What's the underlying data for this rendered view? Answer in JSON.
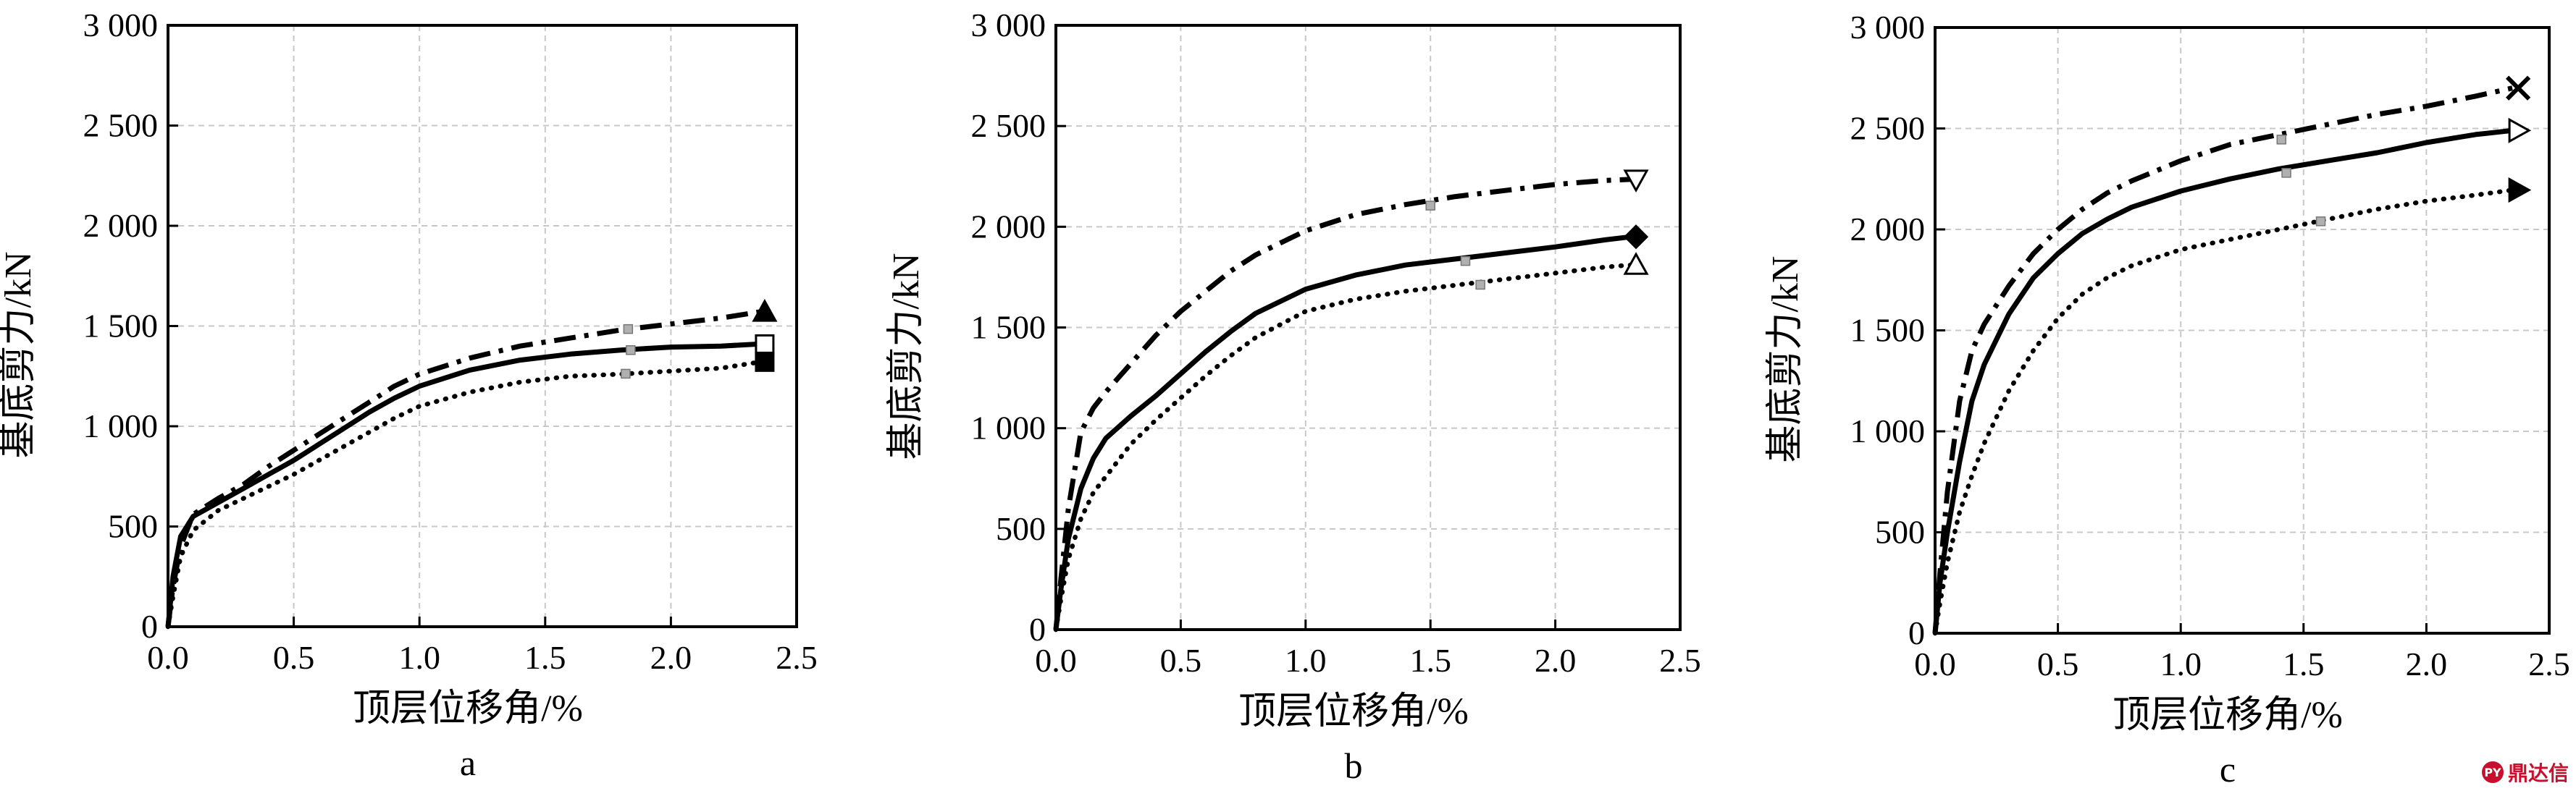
{
  "chart_data": [
    {
      "type": "line",
      "panel_label": "a",
      "xlabel": "顶层位移角/%",
      "ylabel": "基底剪力/kN",
      "xlim": [
        0,
        2.5
      ],
      "ylim": [
        0,
        3000
      ],
      "xticks": [
        0,
        0.5,
        1,
        1.5,
        2,
        2.5
      ],
      "xtick_labels": [
        "0.0",
        "0.5",
        "1.0",
        "1.5",
        "2.0",
        "2.5"
      ],
      "yticks": [
        0,
        500,
        1000,
        1500,
        2000,
        2500,
        3000
      ],
      "ytick_labels": [
        "0",
        "500",
        "1 000",
        "1 500",
        "2 000",
        "2 500",
        "3 000"
      ],
      "grid": true,
      "series": [
        {
          "style": "dashdot",
          "end_marker": "triangle-up-filled",
          "x": [
            0,
            0.02,
            0.05,
            0.1,
            0.2,
            0.3,
            0.4,
            0.5,
            0.6,
            0.7,
            0.8,
            0.9,
            1.0,
            1.2,
            1.4,
            1.6,
            1.8,
            2.0,
            2.2,
            2.35
          ],
          "y": [
            0,
            200,
            400,
            560,
            640,
            710,
            800,
            880,
            960,
            1040,
            1120,
            1200,
            1260,
            1340,
            1400,
            1440,
            1480,
            1510,
            1540,
            1570
          ],
          "mid_marker": {
            "x": 1.83,
            "y": 1485
          }
        },
        {
          "style": "solid",
          "end_marker": "square-open",
          "x": [
            0,
            0.02,
            0.05,
            0.1,
            0.2,
            0.3,
            0.4,
            0.5,
            0.6,
            0.7,
            0.8,
            0.9,
            1.0,
            1.2,
            1.4,
            1.6,
            1.8,
            2.0,
            2.2,
            2.35
          ],
          "y": [
            0,
            250,
            450,
            550,
            620,
            690,
            760,
            830,
            910,
            990,
            1070,
            1140,
            1200,
            1280,
            1330,
            1360,
            1380,
            1395,
            1400,
            1410
          ],
          "mid_marker": {
            "x": 1.84,
            "y": 1380
          }
        },
        {
          "style": "dotted",
          "end_marker": "square-filled",
          "x": [
            0,
            0.02,
            0.05,
            0.1,
            0.2,
            0.3,
            0.4,
            0.5,
            0.6,
            0.7,
            0.8,
            0.9,
            1.0,
            1.2,
            1.4,
            1.6,
            1.8,
            2.0,
            2.2,
            2.35
          ],
          "y": [
            0,
            150,
            350,
            480,
            580,
            640,
            700,
            760,
            830,
            900,
            970,
            1040,
            1100,
            1170,
            1220,
            1250,
            1260,
            1275,
            1290,
            1320
          ],
          "mid_marker": {
            "x": 1.82,
            "y": 1262
          }
        }
      ]
    },
    {
      "type": "line",
      "panel_label": "b",
      "xlabel": "顶层位移角/%",
      "ylabel": "基底剪力/kN",
      "xlim": [
        0,
        2.5
      ],
      "ylim": [
        0,
        3000
      ],
      "xticks": [
        0,
        0.5,
        1,
        1.5,
        2,
        2.5
      ],
      "xtick_labels": [
        "0.0",
        "0.5",
        "1.0",
        "1.5",
        "2.0",
        "2.5"
      ],
      "yticks": [
        0,
        500,
        1000,
        1500,
        2000,
        2500,
        3000
      ],
      "ytick_labels": [
        "0",
        "500",
        "1 000",
        "1 500",
        "2 000",
        "2 500",
        "3 000"
      ],
      "grid": true,
      "series": [
        {
          "style": "dashdot",
          "end_marker": "triangle-down-open",
          "x": [
            0,
            0.02,
            0.05,
            0.1,
            0.15,
            0.2,
            0.3,
            0.4,
            0.5,
            0.6,
            0.7,
            0.8,
            1.0,
            1.2,
            1.4,
            1.6,
            1.8,
            2.0,
            2.2,
            2.3
          ],
          "y": [
            0,
            250,
            600,
            980,
            1100,
            1180,
            1320,
            1460,
            1580,
            1680,
            1780,
            1860,
            1980,
            2060,
            2110,
            2150,
            2180,
            2210,
            2230,
            2235
          ],
          "mid_marker": {
            "x": 1.5,
            "y": 2105
          }
        },
        {
          "style": "solid",
          "end_marker": "diamond-filled",
          "x": [
            0,
            0.02,
            0.05,
            0.1,
            0.15,
            0.2,
            0.3,
            0.4,
            0.5,
            0.6,
            0.7,
            0.8,
            1.0,
            1.2,
            1.4,
            1.6,
            1.8,
            2.0,
            2.2,
            2.3
          ],
          "y": [
            0,
            200,
            450,
            700,
            850,
            950,
            1060,
            1160,
            1270,
            1380,
            1480,
            1570,
            1690,
            1760,
            1810,
            1840,
            1870,
            1900,
            1935,
            1950
          ],
          "mid_marker": {
            "x": 1.64,
            "y": 1830
          }
        },
        {
          "style": "dotted",
          "end_marker": "triangle-up-open",
          "x": [
            0,
            0.02,
            0.05,
            0.1,
            0.15,
            0.2,
            0.3,
            0.4,
            0.5,
            0.6,
            0.7,
            0.8,
            1.0,
            1.2,
            1.4,
            1.6,
            1.8,
            2.0,
            2.2,
            2.3
          ],
          "y": [
            0,
            150,
            350,
            550,
            680,
            760,
            920,
            1040,
            1150,
            1260,
            1360,
            1450,
            1580,
            1640,
            1680,
            1710,
            1740,
            1770,
            1800,
            1810
          ],
          "mid_marker": {
            "x": 1.7,
            "y": 1712
          }
        }
      ]
    },
    {
      "type": "line",
      "panel_label": "c",
      "xlabel": "顶层位移角/%",
      "ylabel": "基底剪力/kN",
      "xlim": [
        0,
        2.5
      ],
      "ylim": [
        0,
        3000
      ],
      "xticks": [
        0,
        0.5,
        1,
        1.5,
        2,
        2.5
      ],
      "xtick_labels": [
        "0.0",
        "0.5",
        "1.0",
        "1.5",
        "2.0",
        "2.5"
      ],
      "yticks": [
        0,
        500,
        1000,
        1500,
        2000,
        2500,
        3000
      ],
      "ytick_labels": [
        "0",
        "500",
        "1 000",
        "1 500",
        "2 000",
        "2 500",
        "3 000"
      ],
      "grid": true,
      "series": [
        {
          "style": "dashdot",
          "end_marker": "x-cross",
          "x": [
            0,
            0.02,
            0.05,
            0.1,
            0.15,
            0.2,
            0.3,
            0.4,
            0.5,
            0.6,
            0.7,
            0.8,
            1.0,
            1.2,
            1.4,
            1.6,
            1.8,
            2.0,
            2.2,
            2.35
          ],
          "y": [
            0,
            300,
            700,
            1150,
            1400,
            1530,
            1720,
            1880,
            2000,
            2100,
            2180,
            2240,
            2340,
            2420,
            2470,
            2520,
            2570,
            2610,
            2660,
            2700
          ],
          "mid_marker": {
            "x": 1.41,
            "y": 2445
          }
        },
        {
          "style": "solid",
          "end_marker": "triangle-right-open",
          "x": [
            0,
            0.02,
            0.05,
            0.1,
            0.15,
            0.2,
            0.3,
            0.4,
            0.5,
            0.6,
            0.7,
            0.8,
            1.0,
            1.2,
            1.4,
            1.6,
            1.8,
            2.0,
            2.2,
            2.35
          ],
          "y": [
            0,
            250,
            500,
            850,
            1150,
            1330,
            1580,
            1760,
            1880,
            1980,
            2050,
            2110,
            2190,
            2250,
            2300,
            2340,
            2380,
            2430,
            2470,
            2490
          ],
          "mid_marker": {
            "x": 1.43,
            "y": 2280
          }
        },
        {
          "style": "dotted",
          "end_marker": "triangle-right-filled",
          "x": [
            0,
            0.02,
            0.05,
            0.1,
            0.15,
            0.2,
            0.3,
            0.4,
            0.5,
            0.6,
            0.7,
            0.8,
            1.0,
            1.2,
            1.4,
            1.6,
            1.8,
            2.0,
            2.2,
            2.35
          ],
          "y": [
            0,
            150,
            350,
            600,
            780,
            940,
            1200,
            1400,
            1560,
            1680,
            1760,
            1820,
            1900,
            1950,
            2000,
            2050,
            2100,
            2140,
            2170,
            2195
          ],
          "mid_marker": {
            "x": 1.57,
            "y": 2040
          }
        }
      ]
    }
  ],
  "watermark": {
    "logo_text": "PY",
    "text": "鼎达信"
  }
}
